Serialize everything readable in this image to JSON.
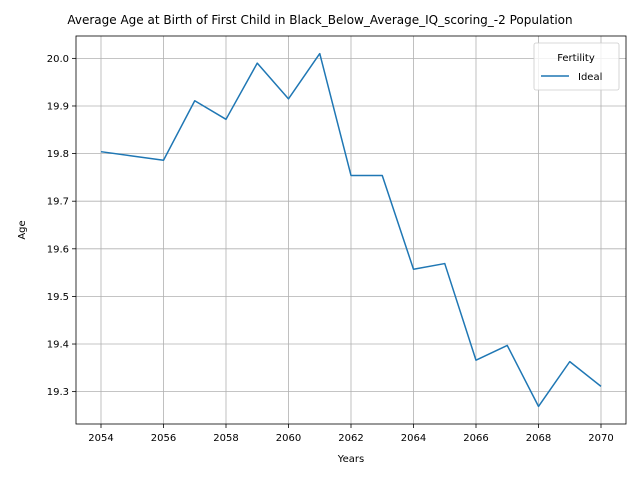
{
  "chart_data": {
    "type": "line",
    "title": "Average Age at Birth of First Child in Black_Below_Average_IQ_scoring_-2 Population",
    "xlabel": "Years",
    "ylabel": "Age",
    "xlim": [
      2053.2,
      2070.8
    ],
    "ylim": [
      19.232,
      20.047
    ],
    "xticks": [
      2054,
      2056,
      2058,
      2060,
      2062,
      2064,
      2066,
      2068,
      2070
    ],
    "yticks": [
      19.3,
      19.4,
      19.5,
      19.6,
      19.7,
      19.8,
      19.9,
      20.0
    ],
    "ytick_labels": [
      "19.3",
      "19.4",
      "19.5",
      "19.6",
      "19.7",
      "19.8",
      "19.9",
      "20.0"
    ],
    "grid": true,
    "legend": {
      "title": "Fertility",
      "placement": "top-right"
    },
    "series": [
      {
        "name": "Ideal",
        "color": "#1f77b4",
        "x": [
          2054,
          2055,
          2056,
          2057,
          2058,
          2059,
          2060,
          2061,
          2062,
          2063,
          2064,
          2065,
          2066,
          2067,
          2068,
          2069,
          2070
        ],
        "y": [
          19.804,
          19.795,
          19.786,
          19.911,
          19.872,
          19.99,
          19.915,
          20.01,
          19.754,
          19.754,
          19.557,
          19.569,
          19.366,
          19.397,
          19.269,
          19.363,
          19.311
        ]
      }
    ]
  }
}
